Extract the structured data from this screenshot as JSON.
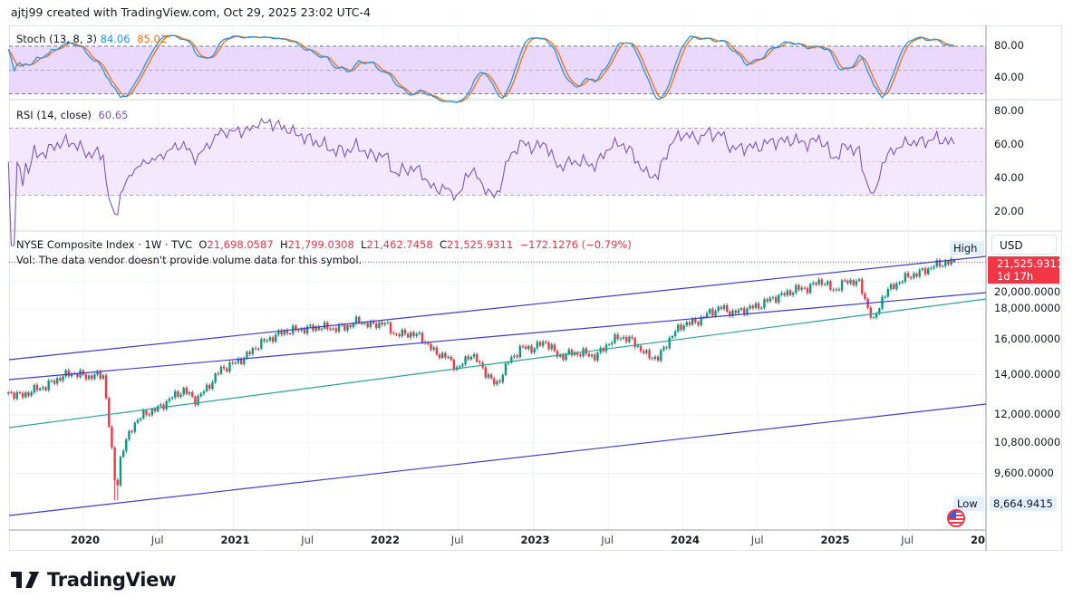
{
  "credit": "ajtj99 created with TradingView.com, Oct 29, 2025 23:02 UTC-4",
  "colors": {
    "up": "#089981",
    "down": "#f23645",
    "stoch_k": "#2196f3",
    "stoch_d": "#ff6d00",
    "rsi": "#7e57c2",
    "channel": "#3c3cd8",
    "trend": "#26a69a"
  },
  "stoch": {
    "label": "Stoch (13, 8, 3)",
    "k": "84.06",
    "d": "85.02",
    "levels": [
      "80.00",
      "40.00"
    ]
  },
  "rsi": {
    "label": "RSI (14, close)",
    "value": "60.65",
    "levels": [
      "80.00",
      "60.00",
      "40.00",
      "20.00"
    ]
  },
  "legend": {
    "symbol": "NYSE Composite Index · 1W · TVC",
    "o_label": "O",
    "o": "21,698.0587",
    "h_label": "H",
    "h": "21,799.0308",
    "l_label": "L",
    "l": "21,462.7458",
    "c_label": "C",
    "c": "21,525.9311",
    "change": "−172.1276 (−0.79%)",
    "vol_note": "Vol: The data vendor doesn't provide volume data for this symbol."
  },
  "price_scale": {
    "currency": "USD",
    "labels": [
      {
        "price": 20000,
        "text": "20,000.0000"
      },
      {
        "price": 18000,
        "text": "18,000.0000"
      },
      {
        "price": 16000,
        "text": "16,000.0000"
      },
      {
        "price": 14000,
        "text": "14,000.0000"
      },
      {
        "price": 12000,
        "text": "12,000.0000"
      },
      {
        "price": 10800,
        "text": "10,800.0000"
      },
      {
        "price": 9600,
        "text": "9,600.0000"
      }
    ],
    "last_price": "21,525.9311",
    "countdown": "1d 17h",
    "high_label": "High",
    "low_label": "Low",
    "low_value": "8,664.9415"
  },
  "time_axis": [
    {
      "date": "2020-01-01",
      "text": "2020",
      "bold": true
    },
    {
      "date": "2020-07-01",
      "text": "Jul"
    },
    {
      "date": "2021-01-01",
      "text": "2021",
      "bold": true
    },
    {
      "date": "2021-07-01",
      "text": "Jul"
    },
    {
      "date": "2022-01-01",
      "text": "2022",
      "bold": true
    },
    {
      "date": "2022-07-01",
      "text": "Jul"
    },
    {
      "date": "2023-01-01",
      "text": "2023",
      "bold": true
    },
    {
      "date": "2023-07-01",
      "text": "Jul"
    },
    {
      "date": "2024-01-01",
      "text": "2024",
      "bold": true
    },
    {
      "date": "2024-07-01",
      "text": "Jul"
    },
    {
      "date": "2025-01-01",
      "text": "2025",
      "bold": true
    },
    {
      "date": "2025-07-01",
      "text": "Jul"
    },
    {
      "date": "2026-01-01",
      "text": "20",
      "bold": true
    }
  ],
  "brand": "TradingView",
  "chart_data": {
    "type": "candlestick",
    "title": "NYSE Composite Index · 1W · TVC",
    "y_scale": "log",
    "ylim": [
      7800,
      22500
    ],
    "xlim": [
      "2019-07-01",
      "2026-04-01"
    ],
    "grid": true,
    "approx_closes": [
      [
        "2019-07-01",
        13100
      ],
      [
        "2019-08-01",
        12900
      ],
      [
        "2019-09-01",
        13200
      ],
      [
        "2019-10-01",
        13400
      ],
      [
        "2019-11-01",
        13800
      ],
      [
        "2019-12-01",
        14100
      ],
      [
        "2020-01-15",
        13900
      ],
      [
        "2020-02-20",
        14000
      ],
      [
        "2020-03-20",
        8900
      ],
      [
        "2020-04-01",
        10300
      ],
      [
        "2020-05-01",
        11600
      ],
      [
        "2020-06-01",
        12100
      ],
      [
        "2020-07-01",
        12300
      ],
      [
        "2020-08-01",
        12800
      ],
      [
        "2020-09-01",
        13200
      ],
      [
        "2020-10-01",
        12700
      ],
      [
        "2020-11-01",
        13400
      ],
      [
        "2020-12-01",
        14300
      ],
      [
        "2021-01-01",
        14600
      ],
      [
        "2021-02-01",
        15000
      ],
      [
        "2021-03-01",
        15700
      ],
      [
        "2021-04-01",
        16100
      ],
      [
        "2021-05-01",
        16500
      ],
      [
        "2021-06-01",
        16600
      ],
      [
        "2021-07-01",
        16700
      ],
      [
        "2021-08-01",
        16800
      ],
      [
        "2021-09-01",
        16700
      ],
      [
        "2021-10-01",
        16800
      ],
      [
        "2021-11-01",
        17200
      ],
      [
        "2021-12-01",
        16900
      ],
      [
        "2022-01-01",
        17100
      ],
      [
        "2022-02-01",
        16300
      ],
      [
        "2022-03-01",
        16400
      ],
      [
        "2022-04-01",
        16200
      ],
      [
        "2022-05-01",
        15300
      ],
      [
        "2022-06-01",
        15000
      ],
      [
        "2022-07-01",
        14300
      ],
      [
        "2022-08-01",
        15200
      ],
      [
        "2022-09-01",
        14300
      ],
      [
        "2022-10-01",
        13400
      ],
      [
        "2022-11-01",
        14700
      ],
      [
        "2022-12-01",
        15500
      ],
      [
        "2023-01-01",
        15500
      ],
      [
        "2023-02-01",
        15900
      ],
      [
        "2023-03-01",
        15000
      ],
      [
        "2023-04-01",
        15200
      ],
      [
        "2023-05-01",
        15200
      ],
      [
        "2023-06-01",
        15000
      ],
      [
        "2023-07-01",
        15800
      ],
      [
        "2023-08-01",
        16200
      ],
      [
        "2023-09-01",
        15900
      ],
      [
        "2023-10-01",
        15100
      ],
      [
        "2023-11-01",
        14900
      ],
      [
        "2023-12-01",
        16200
      ],
      [
        "2024-01-01",
        17000
      ],
      [
        "2024-02-01",
        17100
      ],
      [
        "2024-03-01",
        17700
      ],
      [
        "2024-04-01",
        18100
      ],
      [
        "2024-05-01",
        17700
      ],
      [
        "2024-06-01",
        18000
      ],
      [
        "2024-07-01",
        18200
      ],
      [
        "2024-08-01",
        18700
      ],
      [
        "2024-09-01",
        19000
      ],
      [
        "2024-10-01",
        19400
      ],
      [
        "2024-11-01",
        19500
      ],
      [
        "2024-12-01",
        20100
      ],
      [
        "2025-01-01",
        19300
      ],
      [
        "2025-02-01",
        20000
      ],
      [
        "2025-03-01",
        20000
      ],
      [
        "2025-04-08",
        17100
      ],
      [
        "2025-05-01",
        19000
      ],
      [
        "2025-06-01",
        19800
      ],
      [
        "2025-07-01",
        20400
      ],
      [
        "2025-08-01",
        20700
      ],
      [
        "2025-09-01",
        21200
      ],
      [
        "2025-10-01",
        21500
      ],
      [
        "2025-10-27",
        21525.9311
      ]
    ],
    "high": 21799.0308,
    "low": 8664.9415
  }
}
